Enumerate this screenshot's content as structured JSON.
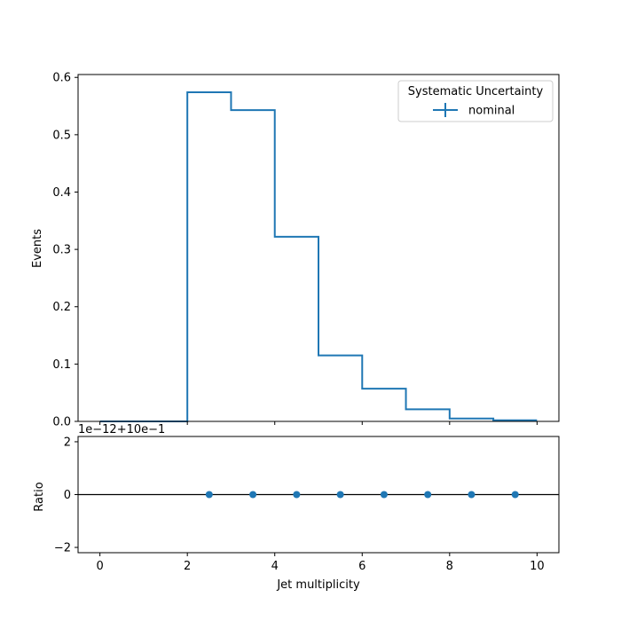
{
  "chart_data": [
    {
      "type": "histogram",
      "ylabel": "Events",
      "xlim": [
        -0.5,
        10.5
      ],
      "ylim": [
        0,
        0.605
      ],
      "yticks": [
        0.0,
        0.1,
        0.2,
        0.3,
        0.4,
        0.5,
        0.6
      ],
      "ytick_labels": [
        "0.0",
        "0.1",
        "0.2",
        "0.3",
        "0.4",
        "0.5",
        "0.6"
      ],
      "bin_edges": [
        0,
        1,
        2,
        3,
        4,
        5,
        6,
        7,
        8,
        9,
        10
      ],
      "series": [
        {
          "name": "nominal",
          "color": "#1f77b4",
          "values": [
            0.0,
            0.0,
            0.574,
            0.543,
            0.322,
            0.115,
            0.057,
            0.021,
            0.005,
            0.002
          ]
        }
      ],
      "legend": {
        "title": "Systematic Uncertainty",
        "entries": [
          "nominal"
        ],
        "placement": "top-right"
      }
    },
    {
      "type": "scatter",
      "xlabel": "Jet multiplicity",
      "ylabel": "Ratio",
      "offset_label": "1e−12+10e−1",
      "xlim": [
        -0.5,
        10.5
      ],
      "ylim": [
        -2.2,
        2.2
      ],
      "xticks": [
        0,
        2,
        4,
        6,
        8,
        10
      ],
      "xtick_labels": [
        "0",
        "2",
        "4",
        "6",
        "8",
        "10"
      ],
      "yticks": [
        -2,
        0,
        2
      ],
      "ytick_labels": [
        "−2",
        "0",
        "2"
      ],
      "reference_line": 0,
      "points": {
        "x": [
          2.5,
          3.5,
          4.5,
          5.5,
          6.5,
          7.5,
          8.5,
          9.5
        ],
        "y": [
          0,
          0,
          0,
          0,
          0,
          0,
          0,
          0
        ]
      },
      "color": "#1f77b4"
    }
  ]
}
